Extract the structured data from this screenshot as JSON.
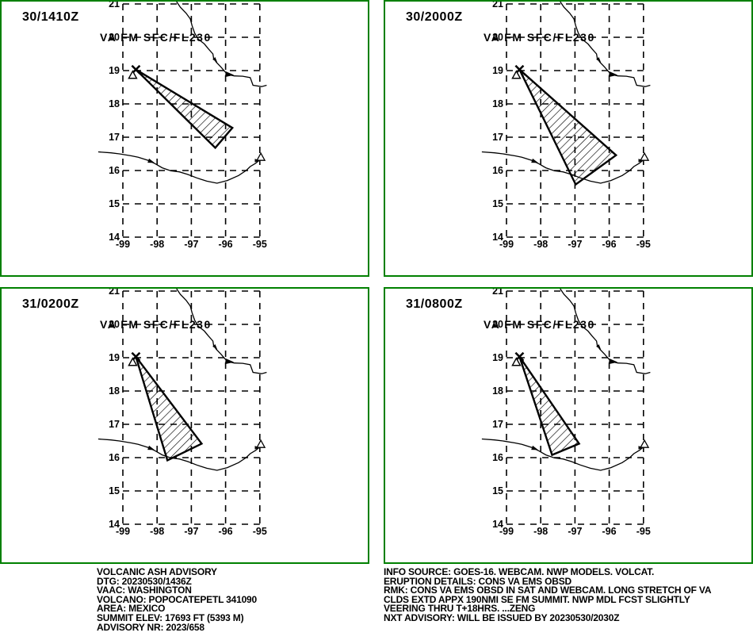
{
  "colors": {
    "background": "#ffffff",
    "panel_border": "#008000",
    "ink": "#000000"
  },
  "panels": [
    {
      "title": "30/1410Z",
      "va_label": "VA FM SFC/FL230",
      "ash_polygon_latlon": [
        [
          19.03,
          -98.62
        ],
        [
          17.28,
          -95.8
        ],
        [
          16.68,
          -96.3
        ]
      ]
    },
    {
      "title": "30/2000Z",
      "va_label": "VA FM SFC/FL230",
      "ash_polygon_latlon": [
        [
          19.03,
          -98.62
        ],
        [
          16.46,
          -95.8
        ],
        [
          15.58,
          -96.98
        ]
      ]
    },
    {
      "title": "31/0200Z",
      "va_label": "VA FM SFC/FL230",
      "ash_polygon_latlon": [
        [
          19.03,
          -98.62
        ],
        [
          16.42,
          -96.7
        ],
        [
          15.92,
          -97.7
        ]
      ]
    },
    {
      "title": "31/0800Z",
      "va_label": "VA FM SFC/FL230",
      "ash_polygon_latlon": [
        [
          19.03,
          -98.62
        ],
        [
          16.42,
          -96.88
        ],
        [
          16.08,
          -97.67
        ]
      ]
    }
  ],
  "map": {
    "lat_ticks": [
      21,
      20,
      19,
      18,
      17,
      16,
      15,
      14
    ],
    "lon_ticks": [
      -99,
      -98,
      -97,
      -96,
      -95
    ],
    "volcano_latlon": [
      19.03,
      -98.62
    ],
    "coastlines": [
      [
        [
          21.3,
          -97.52
        ],
        [
          21.05,
          -97.42
        ],
        [
          20.9,
          -97.32
        ],
        [
          20.72,
          -97.15
        ],
        [
          20.55,
          -97.03
        ],
        [
          20.35,
          -96.98
        ],
        [
          20.12,
          -96.9
        ],
        [
          19.95,
          -96.8
        ],
        [
          19.8,
          -96.62
        ],
        [
          19.65,
          -96.5
        ],
        [
          19.5,
          -96.37
        ],
        [
          19.37,
          -96.35
        ],
        [
          19.25,
          -96.27
        ],
        [
          19.1,
          -96.13
        ],
        [
          18.97,
          -96.02
        ],
        [
          18.88,
          -95.93
        ],
        [
          18.84,
          -95.75
        ],
        [
          18.83,
          -95.5
        ],
        [
          18.79,
          -95.28
        ],
        [
          18.56,
          -95.2
        ],
        [
          18.52,
          -94.95
        ],
        [
          18.56,
          -94.8
        ]
      ],
      [
        [
          16.56,
          -99.72
        ],
        [
          16.53,
          -99.35
        ],
        [
          16.5,
          -99.1
        ],
        [
          16.44,
          -98.75
        ],
        [
          16.4,
          -98.55
        ],
        [
          16.3,
          -98.25
        ],
        [
          16.2,
          -98.05
        ],
        [
          16.08,
          -97.85
        ],
        [
          15.99,
          -97.6
        ],
        [
          15.96,
          -97.35
        ],
        [
          15.88,
          -97.1
        ],
        [
          15.78,
          -96.85
        ],
        [
          15.68,
          -96.55
        ],
        [
          15.62,
          -96.25
        ],
        [
          15.7,
          -95.95
        ],
        [
          15.85,
          -95.62
        ],
        [
          16.0,
          -95.4
        ],
        [
          16.12,
          -95.28
        ],
        [
          16.22,
          -95.12
        ],
        [
          16.3,
          -95.02
        ]
      ]
    ],
    "coast_arrows": [
      {
        "latlon": [
          19.32,
          -96.3
        ],
        "angle": 50,
        "size": 4
      },
      {
        "latlon": [
          18.88,
          -95.9
        ],
        "angle": 5,
        "size": 6.5
      },
      {
        "latlon": [
          16.27,
          -98.18
        ],
        "angle": 20,
        "size": 5
      },
      {
        "latlon": [
          16.3,
          -95.08
        ],
        "angle": 0,
        "size": 4
      }
    ],
    "lagoon_triangle_latlon": [
      16.4,
      -94.97
    ]
  },
  "footer": {
    "left_lines": [
      "VOLCANIC ASH ADVISORY",
      "DTG: 20230530/1436Z",
      "VAAC: WASHINGTON",
      "VOLCANO: POPOCATEPETL 341090",
      "AREA: MEXICO",
      "SUMMIT ELEV: 17693 FT (5393 M)",
      "ADVISORY NR: 2023/658"
    ],
    "right_lines": [
      "INFO SOURCE: GOES-16. WEBCAM. NWP MODELS. VOLCAT.",
      "ERUPTION DETAILS: CONS VA EMS OBSD",
      "RMK: CONS VA EMS OBSD IN SAT AND WEBCAM. LONG STRETCH OF VA",
      "CLDS EXTD APPX 190NMI SE FM SUMMIT. NWP MDL FCST SLIGHTLY",
      "VEERING THRU T+18HRS. ...ZENG",
      "NXT ADVISORY: WILL BE ISSUED BY 20230530/2030Z"
    ]
  }
}
